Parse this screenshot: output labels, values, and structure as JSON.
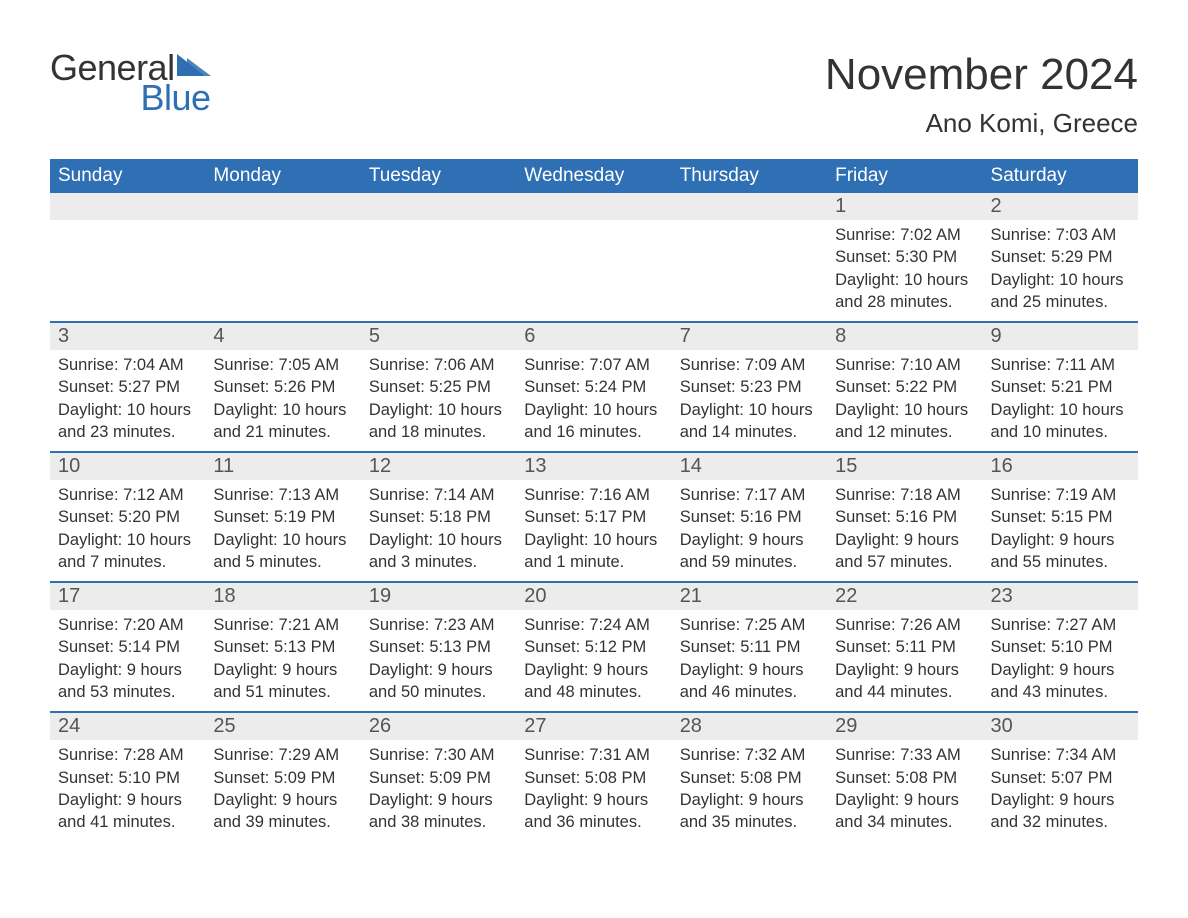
{
  "brand": {
    "word1": "General",
    "word2": "Blue",
    "icon_color": "#2f6fb3",
    "text_color": "#333333"
  },
  "title": "November 2024",
  "location": "Ano Komi, Greece",
  "colors": {
    "header_bg": "#2f6fb3",
    "header_text": "#ffffff",
    "daynum_bg": "#ececec",
    "daynum_text": "#555555",
    "body_text": "#333333",
    "row_border": "#2f6fb3",
    "page_bg": "#ffffff"
  },
  "weekdays": [
    "Sunday",
    "Monday",
    "Tuesday",
    "Wednesday",
    "Thursday",
    "Friday",
    "Saturday"
  ],
  "weeks": [
    [
      {
        "blank": true
      },
      {
        "blank": true
      },
      {
        "blank": true
      },
      {
        "blank": true
      },
      {
        "blank": true
      },
      {
        "day": "1",
        "sunrise": "Sunrise: 7:02 AM",
        "sunset": "Sunset: 5:30 PM",
        "daylight": "Daylight: 10 hours and 28 minutes."
      },
      {
        "day": "2",
        "sunrise": "Sunrise: 7:03 AM",
        "sunset": "Sunset: 5:29 PM",
        "daylight": "Daylight: 10 hours and 25 minutes."
      }
    ],
    [
      {
        "day": "3",
        "sunrise": "Sunrise: 7:04 AM",
        "sunset": "Sunset: 5:27 PM",
        "daylight": "Daylight: 10 hours and 23 minutes."
      },
      {
        "day": "4",
        "sunrise": "Sunrise: 7:05 AM",
        "sunset": "Sunset: 5:26 PM",
        "daylight": "Daylight: 10 hours and 21 minutes."
      },
      {
        "day": "5",
        "sunrise": "Sunrise: 7:06 AM",
        "sunset": "Sunset: 5:25 PM",
        "daylight": "Daylight: 10 hours and 18 minutes."
      },
      {
        "day": "6",
        "sunrise": "Sunrise: 7:07 AM",
        "sunset": "Sunset: 5:24 PM",
        "daylight": "Daylight: 10 hours and 16 minutes."
      },
      {
        "day": "7",
        "sunrise": "Sunrise: 7:09 AM",
        "sunset": "Sunset: 5:23 PM",
        "daylight": "Daylight: 10 hours and 14 minutes."
      },
      {
        "day": "8",
        "sunrise": "Sunrise: 7:10 AM",
        "sunset": "Sunset: 5:22 PM",
        "daylight": "Daylight: 10 hours and 12 minutes."
      },
      {
        "day": "9",
        "sunrise": "Sunrise: 7:11 AM",
        "sunset": "Sunset: 5:21 PM",
        "daylight": "Daylight: 10 hours and 10 minutes."
      }
    ],
    [
      {
        "day": "10",
        "sunrise": "Sunrise: 7:12 AM",
        "sunset": "Sunset: 5:20 PM",
        "daylight": "Daylight: 10 hours and 7 minutes."
      },
      {
        "day": "11",
        "sunrise": "Sunrise: 7:13 AM",
        "sunset": "Sunset: 5:19 PM",
        "daylight": "Daylight: 10 hours and 5 minutes."
      },
      {
        "day": "12",
        "sunrise": "Sunrise: 7:14 AM",
        "sunset": "Sunset: 5:18 PM",
        "daylight": "Daylight: 10 hours and 3 minutes."
      },
      {
        "day": "13",
        "sunrise": "Sunrise: 7:16 AM",
        "sunset": "Sunset: 5:17 PM",
        "daylight": "Daylight: 10 hours and 1 minute."
      },
      {
        "day": "14",
        "sunrise": "Sunrise: 7:17 AM",
        "sunset": "Sunset: 5:16 PM",
        "daylight": "Daylight: 9 hours and 59 minutes."
      },
      {
        "day": "15",
        "sunrise": "Sunrise: 7:18 AM",
        "sunset": "Sunset: 5:16 PM",
        "daylight": "Daylight: 9 hours and 57 minutes."
      },
      {
        "day": "16",
        "sunrise": "Sunrise: 7:19 AM",
        "sunset": "Sunset: 5:15 PM",
        "daylight": "Daylight: 9 hours and 55 minutes."
      }
    ],
    [
      {
        "day": "17",
        "sunrise": "Sunrise: 7:20 AM",
        "sunset": "Sunset: 5:14 PM",
        "daylight": "Daylight: 9 hours and 53 minutes."
      },
      {
        "day": "18",
        "sunrise": "Sunrise: 7:21 AM",
        "sunset": "Sunset: 5:13 PM",
        "daylight": "Daylight: 9 hours and 51 minutes."
      },
      {
        "day": "19",
        "sunrise": "Sunrise: 7:23 AM",
        "sunset": "Sunset: 5:13 PM",
        "daylight": "Daylight: 9 hours and 50 minutes."
      },
      {
        "day": "20",
        "sunrise": "Sunrise: 7:24 AM",
        "sunset": "Sunset: 5:12 PM",
        "daylight": "Daylight: 9 hours and 48 minutes."
      },
      {
        "day": "21",
        "sunrise": "Sunrise: 7:25 AM",
        "sunset": "Sunset: 5:11 PM",
        "daylight": "Daylight: 9 hours and 46 minutes."
      },
      {
        "day": "22",
        "sunrise": "Sunrise: 7:26 AM",
        "sunset": "Sunset: 5:11 PM",
        "daylight": "Daylight: 9 hours and 44 minutes."
      },
      {
        "day": "23",
        "sunrise": "Sunrise: 7:27 AM",
        "sunset": "Sunset: 5:10 PM",
        "daylight": "Daylight: 9 hours and 43 minutes."
      }
    ],
    [
      {
        "day": "24",
        "sunrise": "Sunrise: 7:28 AM",
        "sunset": "Sunset: 5:10 PM",
        "daylight": "Daylight: 9 hours and 41 minutes."
      },
      {
        "day": "25",
        "sunrise": "Sunrise: 7:29 AM",
        "sunset": "Sunset: 5:09 PM",
        "daylight": "Daylight: 9 hours and 39 minutes."
      },
      {
        "day": "26",
        "sunrise": "Sunrise: 7:30 AM",
        "sunset": "Sunset: 5:09 PM",
        "daylight": "Daylight: 9 hours and 38 minutes."
      },
      {
        "day": "27",
        "sunrise": "Sunrise: 7:31 AM",
        "sunset": "Sunset: 5:08 PM",
        "daylight": "Daylight: 9 hours and 36 minutes."
      },
      {
        "day": "28",
        "sunrise": "Sunrise: 7:32 AM",
        "sunset": "Sunset: 5:08 PM",
        "daylight": "Daylight: 9 hours and 35 minutes."
      },
      {
        "day": "29",
        "sunrise": "Sunrise: 7:33 AM",
        "sunset": "Sunset: 5:08 PM",
        "daylight": "Daylight: 9 hours and 34 minutes."
      },
      {
        "day": "30",
        "sunrise": "Sunrise: 7:34 AM",
        "sunset": "Sunset: 5:07 PM",
        "daylight": "Daylight: 9 hours and 32 minutes."
      }
    ]
  ]
}
